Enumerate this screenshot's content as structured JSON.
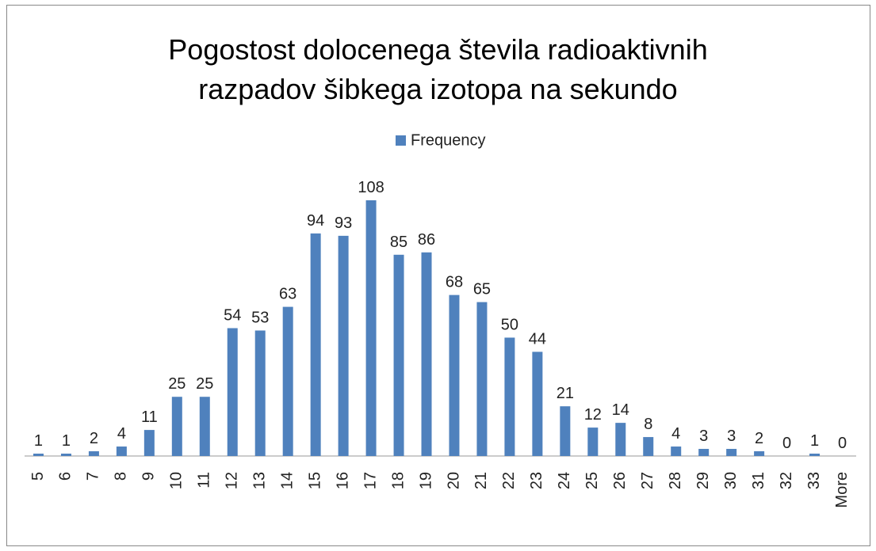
{
  "chart_data": {
    "type": "bar",
    "title": "Pogostost dolocenega števila radioaktivnih razpadov šibkega izotopa na sekundo",
    "legend": "Frequency",
    "series": [
      {
        "name": "Frequency",
        "color": "#4f81bd",
        "values": [
          1,
          1,
          2,
          4,
          11,
          25,
          25,
          54,
          53,
          63,
          94,
          93,
          108,
          85,
          86,
          68,
          65,
          50,
          44,
          21,
          12,
          14,
          8,
          4,
          3,
          3,
          2,
          0,
          1,
          0
        ]
      }
    ],
    "categories": [
      "5",
      "6",
      "7",
      "8",
      "9",
      "10",
      "11",
      "12",
      "13",
      "14",
      "15",
      "16",
      "17",
      "18",
      "19",
      "20",
      "21",
      "22",
      "23",
      "24",
      "25",
      "26",
      "27",
      "28",
      "29",
      "30",
      "31",
      "32",
      "33",
      "More"
    ]
  }
}
